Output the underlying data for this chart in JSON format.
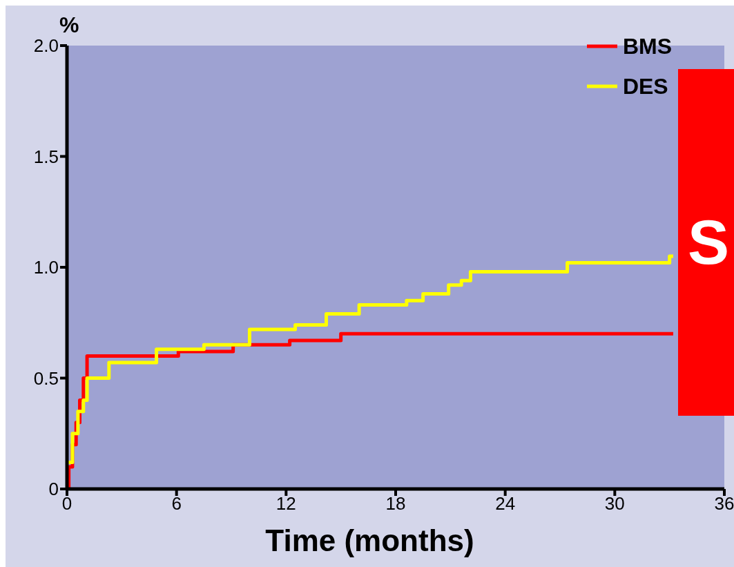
{
  "chart_data": {
    "type": "step",
    "xlabel": "Time (months)",
    "ylabel": "%",
    "xlim": [
      0,
      36
    ],
    "xticks": [
      0,
      6,
      12,
      18,
      24,
      30,
      36
    ],
    "ylim": [
      0,
      2.0
    ],
    "yticks": [
      0,
      {
        "value": 0.5,
        "label": "0.5"
      },
      {
        "value": 1,
        "label": "1.0"
      },
      {
        "value": 1.5,
        "label": "1.5"
      },
      {
        "value": 2,
        "label": "2.0"
      }
    ],
    "legend": "top right",
    "line_style": "solid",
    "marker": "none",
    "annotations": [
      "S"
    ],
    "series": [
      {
        "name": "BMS",
        "color": "#ff0000",
        "x": [
          0,
          0.1,
          0.3,
          0.5,
          0.7,
          0.9,
          1.1,
          6.1,
          9.1,
          12.2,
          15,
          33.2
        ],
        "values": [
          0,
          0.1,
          0.2,
          0.3,
          0.4,
          0.5,
          0.6,
          0.62,
          0.65,
          0.67,
          0.7,
          0.7
        ]
      },
      {
        "name": "DES",
        "color": "#ffff00",
        "x": [
          0,
          0.3,
          0.6,
          0.9,
          1.1,
          2.3,
          4.9,
          7.5,
          10,
          12.5,
          14.2,
          16,
          18.6,
          19.5,
          20.9,
          21.6,
          22.1,
          27.4,
          33,
          33.2
        ],
        "values": [
          0.12,
          0.25,
          0.35,
          0.4,
          0.5,
          0.57,
          0.63,
          0.65,
          0.72,
          0.74,
          0.79,
          0.83,
          0.85,
          0.88,
          0.92,
          0.94,
          0.98,
          1.02,
          1.05,
          1.05
        ]
      }
    ]
  }
}
